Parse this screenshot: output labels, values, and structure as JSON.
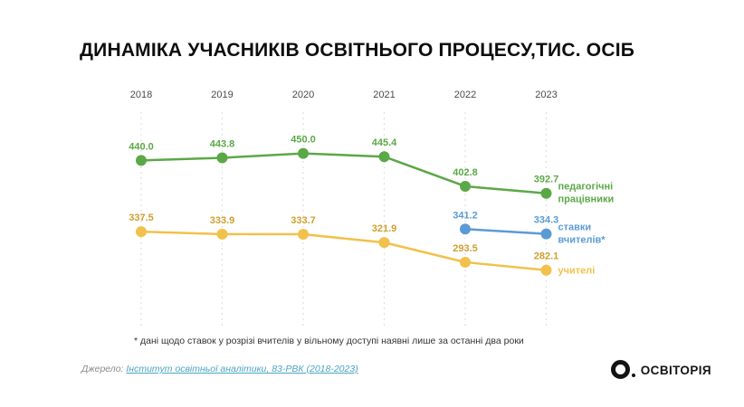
{
  "slide": {
    "title": "ДИНАМІКА УЧАСНИКІВ ОСВІТНЬОГО ПРОЦЕСУ,ТИС. ОСІБ",
    "footnote": "* дані щодо ставок у розрізі вчителів у вільному доступі наявні лише за останні два роки",
    "source_prefix": "Джерело: ",
    "source_link": "Інститут освітньої аналітики, 83-РВК (2018-2023)",
    "logo_text": "ОСВІТОРІЯ"
  },
  "colors": {
    "title": "#0d0d0d",
    "gridline": "#e0e0e0",
    "year_label": "#4a4a4a",
    "source_link": "#4aa5c4",
    "logo": "#141414"
  },
  "chart_data": {
    "type": "line",
    "title": "ДИНАМІКА УЧАСНИКІВ ОСВІТНЬОГО ПРОЦЕСУ,ТИС. ОСІБ",
    "xlabel": "",
    "ylabel": "тис. осіб",
    "categories": [
      "2018",
      "2019",
      "2020",
      "2021",
      "2022",
      "2023"
    ],
    "ylim": [
      270,
      460
    ],
    "grid": "vertical-dashed",
    "legend_position": "right-of-line-end",
    "series": [
      {
        "name": "педагогічні працівники",
        "legend_lines": [
          "педагогічні",
          "працівники"
        ],
        "color": "#5ba847",
        "label_color": "#5ba847",
        "values": [
          440.0,
          443.8,
          450.0,
          445.4,
          402.8,
          392.7
        ]
      },
      {
        "name": "ставки вчителів*",
        "legend_lines": [
          "ставки",
          "вчителів*"
        ],
        "color": "#5b9bd5",
        "label_color": "#5b9bd5",
        "values": [
          null,
          null,
          null,
          null,
          341.2,
          334.3
        ]
      },
      {
        "name": "учителі",
        "legend_lines": [
          "учителі"
        ],
        "color": "#f2c14b",
        "label_color": "#cfa02f",
        "values": [
          337.5,
          333.9,
          333.7,
          321.9,
          293.5,
          282.1
        ]
      }
    ]
  }
}
